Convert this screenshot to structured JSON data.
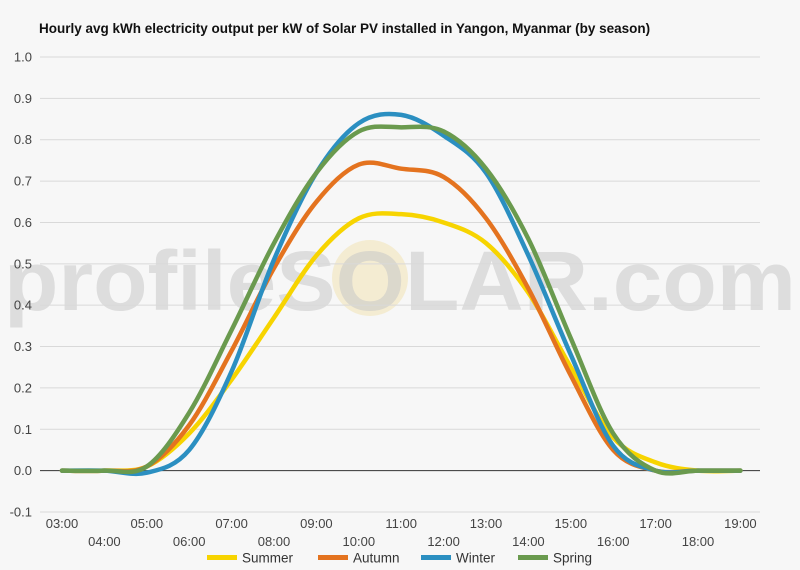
{
  "chart_data": {
    "type": "line",
    "title": "Hourly avg kWh electricity output per kW of Solar PV installed in Yangon, Myanmar (by season)",
    "xlabel": "",
    "ylabel": "",
    "ylim": [
      -0.1,
      1.0
    ],
    "yticks": [
      "-0.1",
      "0.0",
      "0.1",
      "0.2",
      "0.3",
      "0.4",
      "0.5",
      "0.6",
      "0.7",
      "0.8",
      "0.9",
      "1.0"
    ],
    "categories": [
      "03:00",
      "04:00",
      "05:00",
      "06:00",
      "07:00",
      "08:00",
      "09:00",
      "10:00",
      "11:00",
      "12:00",
      "13:00",
      "14:00",
      "15:00",
      "16:00",
      "17:00",
      "18:00",
      "19:00"
    ],
    "grid": true,
    "legend_position": "bottom",
    "watermark": "profileSOLAR.com",
    "series": [
      {
        "name": "Summer",
        "color": "#f7d400",
        "values": [
          0.0,
          0.0,
          0.01,
          0.09,
          0.22,
          0.37,
          0.52,
          0.61,
          0.62,
          0.6,
          0.55,
          0.43,
          0.25,
          0.08,
          0.02,
          0.0,
          0.0
        ]
      },
      {
        "name": "Autumn",
        "color": "#e4731f",
        "values": [
          0.0,
          0.0,
          0.01,
          0.11,
          0.29,
          0.49,
          0.65,
          0.74,
          0.73,
          0.71,
          0.61,
          0.44,
          0.23,
          0.05,
          0.0,
          0.0,
          0.0
        ]
      },
      {
        "name": "Winter",
        "color": "#2b8fc1",
        "values": [
          0.0,
          0.0,
          -0.005,
          0.05,
          0.24,
          0.51,
          0.72,
          0.84,
          0.86,
          0.81,
          0.72,
          0.52,
          0.28,
          0.06,
          0.0,
          0.0,
          0.0
        ]
      },
      {
        "name": "Spring",
        "color": "#6a9a4e",
        "values": [
          0.0,
          0.0,
          0.01,
          0.14,
          0.34,
          0.55,
          0.72,
          0.82,
          0.83,
          0.82,
          0.73,
          0.56,
          0.32,
          0.09,
          0.0,
          0.0,
          0.0
        ]
      }
    ]
  }
}
